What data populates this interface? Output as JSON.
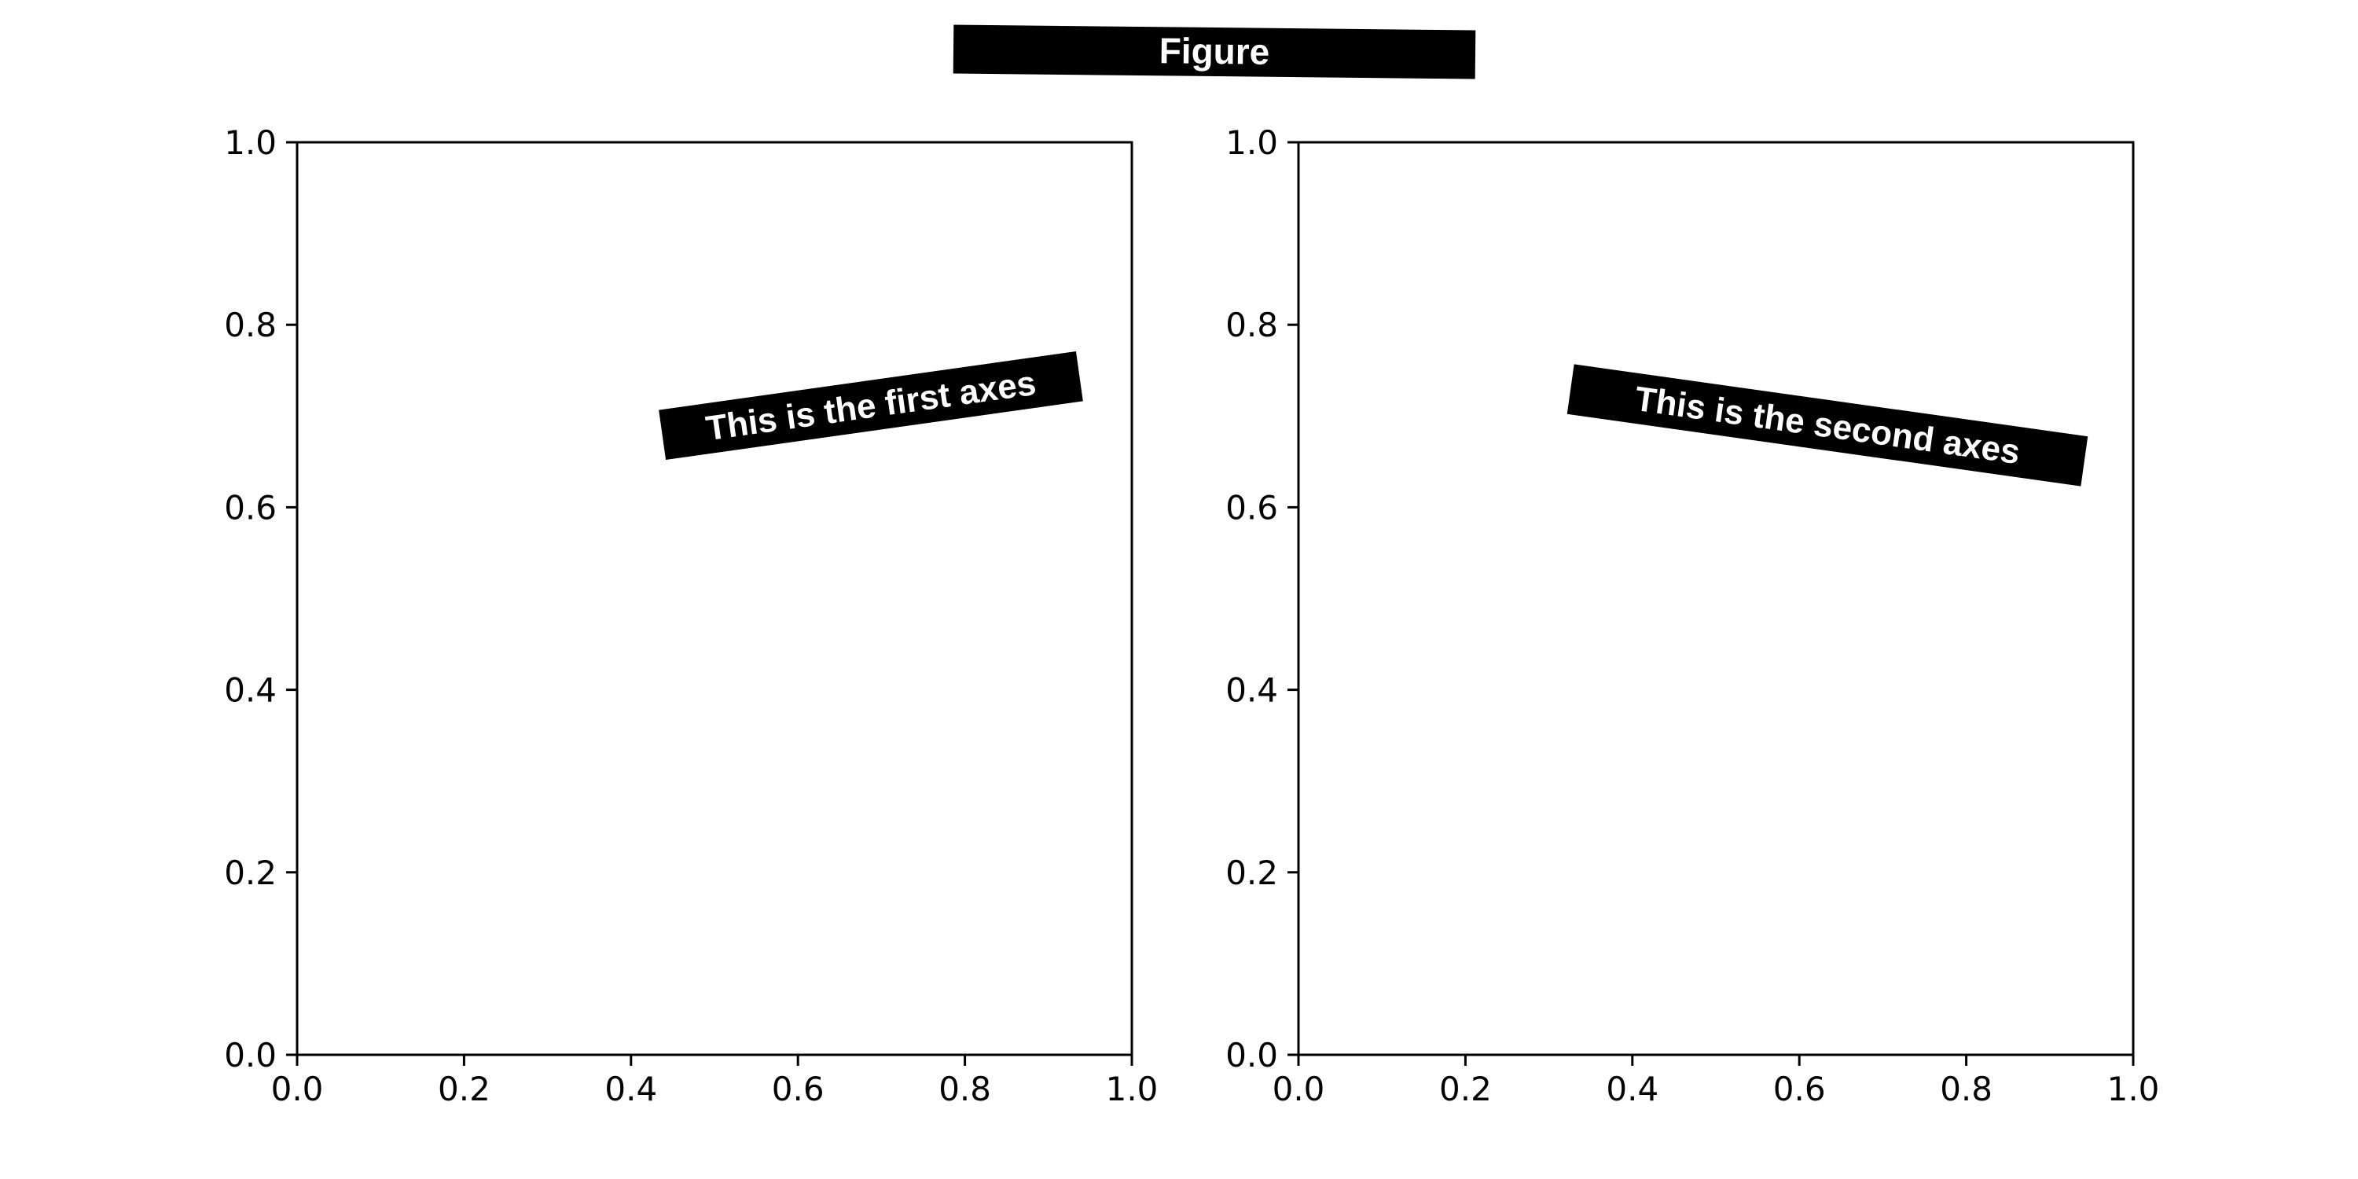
{
  "figure": {
    "suptitle": "Figure",
    "background": "#ffffff",
    "box_color": "#000000",
    "box_text_color": "#ffffff"
  },
  "chart_data": [
    {
      "type": "scatter",
      "series": [],
      "annotation": "This is the first axes",
      "xlim": [
        0.0,
        1.0
      ],
      "ylim": [
        0.0,
        1.0
      ],
      "xticks": [
        "0.0",
        "0.2",
        "0.4",
        "0.6",
        "0.8",
        "1.0"
      ],
      "yticks": [
        "0.0",
        "0.2",
        "0.4",
        "0.6",
        "0.8",
        "1.0"
      ],
      "grid": false
    },
    {
      "type": "scatter",
      "series": [],
      "annotation": "This is the second axes",
      "xlim": [
        0.0,
        1.0
      ],
      "ylim": [
        0.0,
        1.0
      ],
      "xticks": [
        "0.0",
        "0.2",
        "0.4",
        "0.6",
        "0.8",
        "1.0"
      ],
      "yticks": [
        "0.0",
        "0.2",
        "0.4",
        "0.6",
        "0.8",
        "1.0"
      ],
      "grid": false
    }
  ]
}
